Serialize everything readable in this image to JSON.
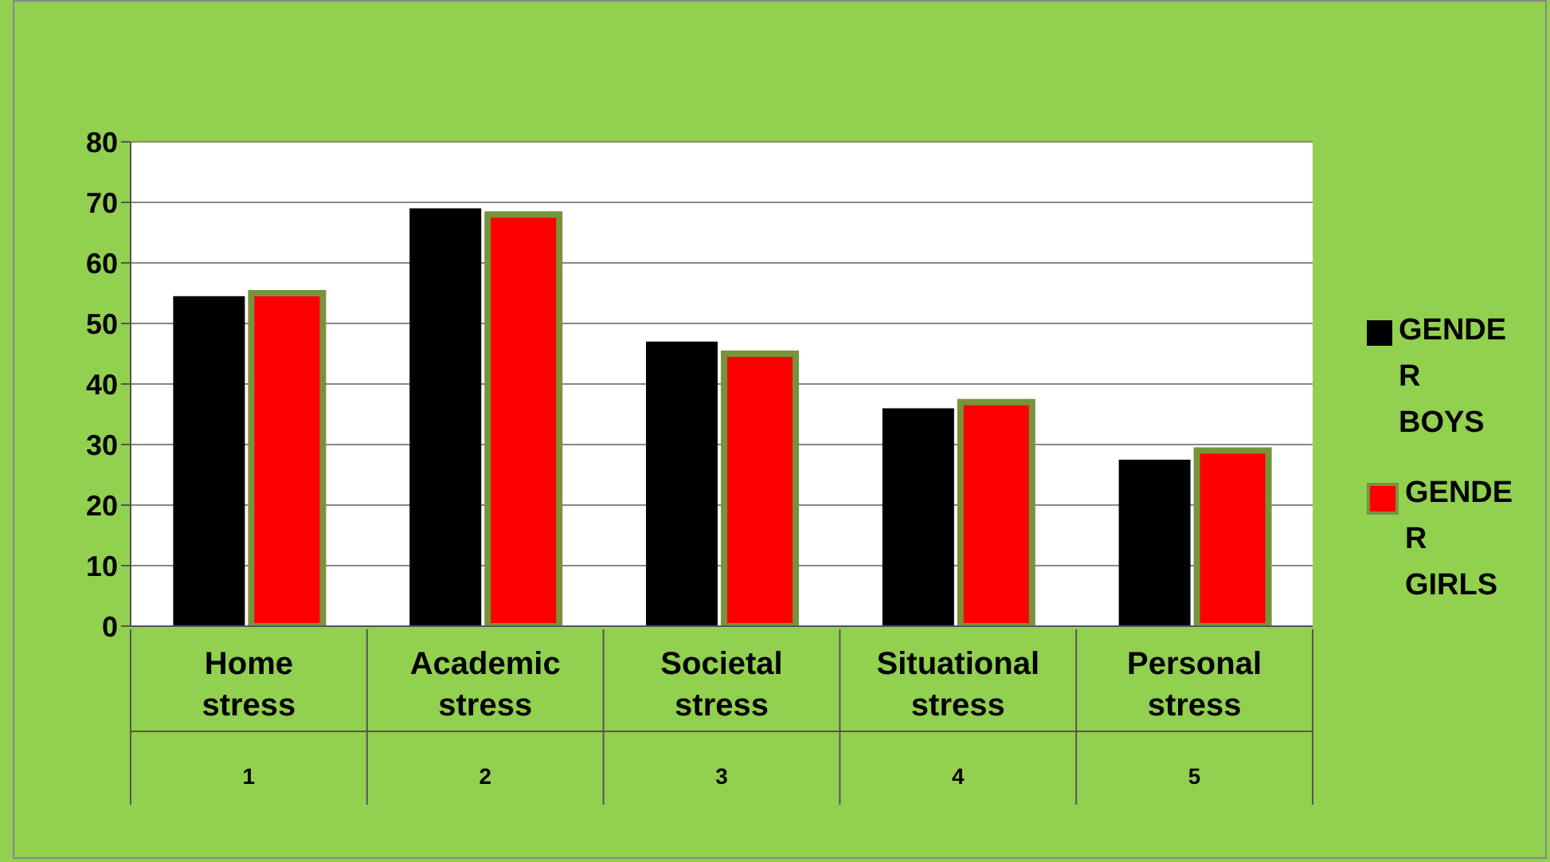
{
  "chart_data": {
    "type": "bar",
    "categories": [
      "Home stress",
      "Academic stress",
      "Societal stress",
      "Situational stress",
      "Personal stress"
    ],
    "series": [
      {
        "name": "GENDER BOYS",
        "color": "#000000",
        "values": [
          54.5,
          69,
          47,
          36,
          27.5
        ]
      },
      {
        "name": "GENDER GIRLS",
        "color": "#ff0000",
        "values": [
          55,
          68,
          45,
          37,
          29
        ]
      }
    ],
    "annotations": [
      "1",
      "2",
      "3",
      "4",
      "5"
    ],
    "ylim": [
      0,
      80
    ],
    "yticks": [
      0,
      10,
      20,
      30,
      40,
      50,
      60,
      70,
      80
    ],
    "grid": "y",
    "legend": "right"
  }
}
